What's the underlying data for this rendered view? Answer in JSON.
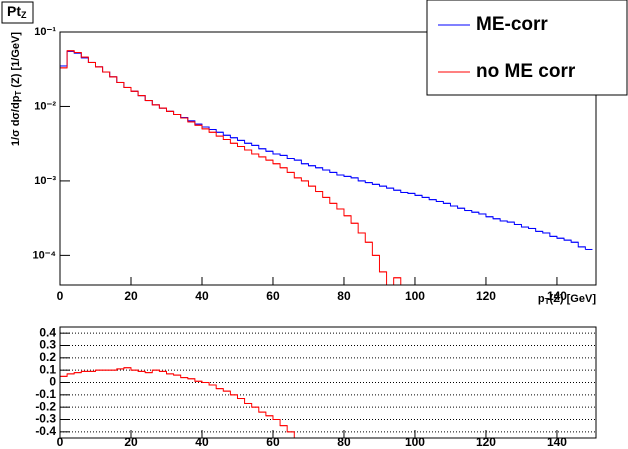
{
  "chart_data": [
    {
      "type": "histogram",
      "title": "Pt",
      "title_sub": "Z",
      "x_label": [
        "p",
        "T",
        "(Z) [GeV]"
      ],
      "y_label": [
        "1/σ dσ/dp",
        "T",
        " (Z) [1/GeV]"
      ],
      "log_y": true,
      "legend": "top-right",
      "xlim": [
        0,
        151
      ],
      "ylim": [
        4e-05,
        0.1
      ],
      "xticks": [
        0,
        20,
        40,
        60,
        80,
        100,
        120,
        140
      ],
      "yticks": [
        {
          "value": 0.1,
          "label": "10⁻¹"
        },
        {
          "value": 0.01,
          "label": "10⁻²"
        },
        {
          "value": 0.001,
          "label": "10⁻³"
        },
        {
          "value": 0.0001,
          "label": "10⁻⁴"
        }
      ],
      "bins": [
        0,
        2,
        4,
        6,
        8,
        10,
        12,
        14,
        16,
        18,
        20,
        22,
        24,
        26,
        28,
        30,
        32,
        34,
        36,
        38,
        40,
        42,
        44,
        46,
        48,
        50,
        52,
        54,
        56,
        58,
        60,
        62,
        64,
        66,
        68,
        70,
        72,
        74,
        76,
        78,
        80,
        82,
        84,
        86,
        88,
        90,
        92,
        94,
        96,
        98,
        100,
        102,
        104,
        106,
        108,
        110,
        112,
        114,
        116,
        118,
        120,
        122,
        124,
        126,
        128,
        130,
        132,
        134,
        136,
        138,
        140,
        142,
        144,
        146,
        148,
        150
      ],
      "series": [
        {
          "name": "ME-corr",
          "color": "#0000ff",
          "values": [
            0.035,
            0.055,
            0.052,
            0.045,
            0.039,
            0.034,
            0.029,
            0.025,
            0.021,
            0.018,
            0.016,
            0.014,
            0.012,
            0.0105,
            0.0095,
            0.0086,
            0.0078,
            0.0071,
            0.0064,
            0.0058,
            0.0053,
            0.0049,
            0.0045,
            0.0041,
            0.0038,
            0.0035,
            0.0032,
            0.003,
            0.0027,
            0.0025,
            0.0023,
            0.0022,
            0.002,
            0.0019,
            0.0017,
            0.0016,
            0.0015,
            0.0014,
            0.0013,
            0.0012,
            0.00115,
            0.0011,
            0.001,
            0.00095,
            0.0009,
            0.00085,
            0.0008,
            0.00075,
            0.0007,
            0.00068,
            0.00064,
            0.0006,
            0.00056,
            0.00053,
            0.0005,
            0.00046,
            0.00043,
            0.0004,
            0.00038,
            0.00036,
            0.00033,
            0.00031,
            0.00029,
            0.00028,
            0.00026,
            0.00024,
            0.00023,
            0.00021,
            0.0002,
            0.00018,
            0.00017,
            0.00016,
            0.00015,
            0.00013,
            0.00012
          ]
        },
        {
          "name": "no ME corr",
          "color": "#ff0000",
          "values": [
            0.033,
            0.056,
            0.053,
            0.046,
            0.039,
            0.034,
            0.029,
            0.025,
            0.021,
            0.018,
            0.016,
            0.014,
            0.012,
            0.0105,
            0.0095,
            0.0086,
            0.0078,
            0.007,
            0.0062,
            0.0056,
            0.005,
            0.0045,
            0.004,
            0.0036,
            0.0032,
            0.0029,
            0.0026,
            0.0023,
            0.0021,
            0.0019,
            0.0017,
            0.0015,
            0.0013,
            0.0011,
            0.001,
            0.00085,
            0.00072,
            0.0006,
            0.0005,
            0.00042,
            0.00034,
            0.00027,
            0.0002,
            0.00015,
            0.0001,
            6e-05,
            4e-05,
            5e-05,
            0,
            0,
            0,
            0,
            0,
            0,
            0,
            0,
            0,
            0,
            0,
            0,
            0,
            0,
            0,
            0,
            0,
            0,
            0,
            0,
            0,
            0,
            0,
            0,
            0,
            0,
            0
          ]
        }
      ]
    },
    {
      "type": "histogram",
      "grid": true,
      "xlim": [
        0,
        151
      ],
      "ylim": [
        -0.45,
        0.45
      ],
      "xticks": [
        0,
        20,
        40,
        60,
        80,
        100,
        120,
        140
      ],
      "yticks": [
        0.4,
        0.3,
        0.2,
        0.1,
        0,
        -0.1,
        -0.2,
        -0.3,
        -0.4
      ],
      "bins": [
        0,
        2,
        4,
        6,
        8,
        10,
        12,
        14,
        16,
        18,
        20,
        22,
        24,
        26,
        28,
        30,
        32,
        34,
        36,
        38,
        40,
        42,
        44,
        46,
        48,
        50,
        52,
        54,
        56,
        58,
        60,
        62,
        64,
        66,
        68
      ],
      "series": [
        {
          "color": "#ff0000",
          "values": [
            0.05,
            0.07,
            0.08,
            0.09,
            0.09,
            0.1,
            0.1,
            0.1,
            0.11,
            0.12,
            0.1,
            0.09,
            0.08,
            0.1,
            0.09,
            0.07,
            0.06,
            0.04,
            0.03,
            0.01,
            0,
            -0.02,
            -0.05,
            -0.07,
            -0.1,
            -0.13,
            -0.17,
            -0.2,
            -0.24,
            -0.27,
            -0.3,
            -0.35,
            -0.4,
            -0.45
          ]
        }
      ]
    }
  ]
}
